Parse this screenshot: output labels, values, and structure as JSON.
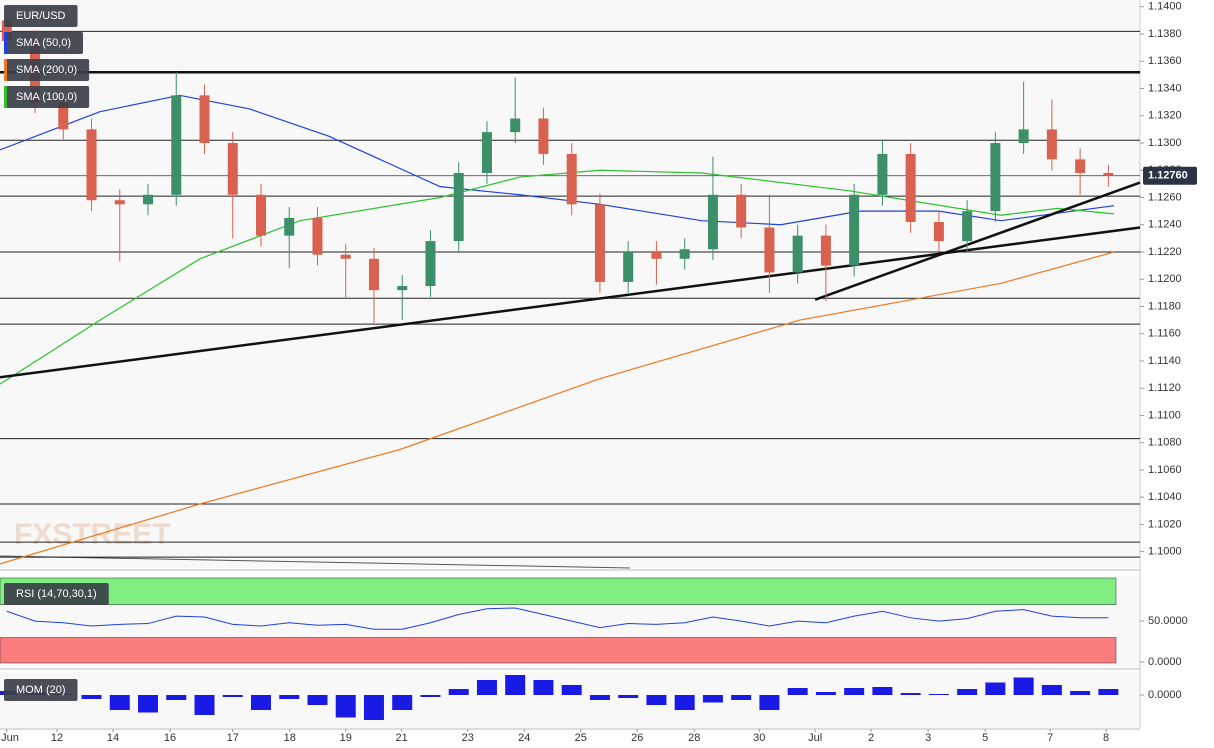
{
  "chart_data": [
    {
      "type": "candlestick",
      "title": "EUR/USD",
      "watermark": "FXSTREET",
      "x": [
        0,
        0.5,
        1,
        1.5,
        2,
        2.5,
        3,
        3.5,
        4,
        4.5,
        5,
        5.5,
        6,
        6.5,
        7,
        7.5,
        8,
        8.5,
        9,
        9.5,
        10,
        10.5,
        11,
        11.5,
        12,
        12.5,
        13,
        13.5,
        14,
        14.5,
        15,
        15.5,
        16,
        16.5,
        17,
        17.5,
        18,
        18.5,
        19,
        19.5
      ],
      "open": [
        1.139,
        1.1375,
        1.133,
        1.131,
        1.1258,
        1.1255,
        1.1262,
        1.1335,
        1.13,
        1.1262,
        1.1232,
        1.1245,
        1.1218,
        1.1215,
        1.1192,
        1.1195,
        1.1228,
        1.1278,
        1.1308,
        1.1318,
        1.1292,
        1.1255,
        1.1198,
        1.122,
        1.1215,
        1.1222,
        1.1262,
        1.1238,
        1.1205,
        1.1232,
        1.121,
        1.1262,
        1.1292,
        1.1242,
        1.1228,
        1.125,
        1.13,
        1.131,
        1.1288,
        1.1278
      ],
      "high": [
        1.1398,
        1.1383,
        1.1338,
        1.1318,
        1.1266,
        1.127,
        1.1352,
        1.1343,
        1.1308,
        1.127,
        1.1253,
        1.1253,
        1.1226,
        1.1223,
        1.1203,
        1.1236,
        1.1286,
        1.1316,
        1.1348,
        1.1326,
        1.13,
        1.1263,
        1.1228,
        1.1228,
        1.123,
        1.129,
        1.127,
        1.1262,
        1.124,
        1.124,
        1.127,
        1.1302,
        1.13,
        1.125,
        1.1258,
        1.1308,
        1.1345,
        1.1332,
        1.1296,
        1.1284
      ],
      "low": [
        1.1367,
        1.1322,
        1.1302,
        1.125,
        1.1213,
        1.1247,
        1.1254,
        1.1292,
        1.123,
        1.1224,
        1.1208,
        1.121,
        1.1186,
        1.1168,
        1.117,
        1.1187,
        1.122,
        1.127,
        1.13,
        1.1284,
        1.1247,
        1.119,
        1.119,
        1.1196,
        1.1207,
        1.1214,
        1.123,
        1.119,
        1.1197,
        1.1184,
        1.1202,
        1.1254,
        1.1234,
        1.122,
        1.122,
        1.1242,
        1.1292,
        1.128,
        1.1262,
        1.1268
      ],
      "close": [
        1.1375,
        1.133,
        1.131,
        1.1258,
        1.1255,
        1.1262,
        1.1335,
        1.13,
        1.1262,
        1.1232,
        1.1245,
        1.1218,
        1.1215,
        1.1192,
        1.1195,
        1.1228,
        1.1278,
        1.1308,
        1.1318,
        1.1292,
        1.1255,
        1.1198,
        1.122,
        1.1215,
        1.1222,
        1.1262,
        1.1238,
        1.1205,
        1.1232,
        1.121,
        1.1262,
        1.1292,
        1.1242,
        1.1228,
        1.125,
        1.13,
        1.131,
        1.1288,
        1.1278,
        1.1276
      ],
      "up_color": "#3d8f6a",
      "down_color": "#d9614f",
      "series": [
        {
          "name": "SMA (50,0)",
          "color": "#2040e0",
          "x": [
            -0.12,
            1.65,
            3.06,
            4.3,
            5.7,
            7.67,
            9.08,
            10.5,
            12.3,
            13.7,
            15.1,
            16.5,
            17.6,
            19.6
          ],
          "values": [
            1.1295,
            1.1323,
            1.1335,
            1.1325,
            1.1305,
            1.1268,
            1.1262,
            1.1255,
            1.1243,
            1.124,
            1.125,
            1.125,
            1.1243,
            1.1254
          ]
        },
        {
          "name": "SMA (200,0)",
          "color": "#f07820",
          "x": [
            -0.12,
            3.42,
            6.96,
            10.5,
            14.04,
            17.6,
            19.6
          ],
          "values": [
            1.0991,
            1.1035,
            1.1075,
            1.1127,
            1.117,
            1.1197,
            1.122
          ]
        },
        {
          "name": "SMA (100,0)",
          "color": "#30c030",
          "x": [
            -0.12,
            1.65,
            3.42,
            5.19,
            7.67,
            9.08,
            10.5,
            12.3,
            14.9,
            17.6,
            18.6,
            19.6
          ],
          "values": [
            1.1123,
            1.117,
            1.1215,
            1.1243,
            1.126,
            1.1275,
            1.128,
            1.1278,
            1.1265,
            1.1247,
            1.1252,
            1.1248
          ]
        }
      ],
      "levels": [
        1.1382,
        1.1302,
        1.1261,
        1.122,
        1.1186,
        1.1167,
        1.1083,
        1.1035,
        1.1007,
        1.0996
      ],
      "bold_level": 1.1352,
      "trendlines": [
        {
          "x": [
            -0.12,
            20.06
          ],
          "values": [
            1.1128,
            1.1238
          ]
        },
        {
          "x": [
            14.31,
            20.06
          ],
          "values": [
            1.1185,
            1.1271
          ]
        }
      ],
      "last_price": 1.1276,
      "last_price_label": "1.12760",
      "xlim": [
        -0.12,
        20.06
      ],
      "ylim": [
        1.0988,
        1.1405
      ],
      "yticks": [
        {
          "value": 1.1,
          "label": "1.1000"
        },
        {
          "value": 1.102,
          "label": "1.1020"
        },
        {
          "value": 1.104,
          "label": "1.1040"
        },
        {
          "value": 1.106,
          "label": "1.1060"
        },
        {
          "value": 1.108,
          "label": "1.1080"
        },
        {
          "value": 1.11,
          "label": "1.1100"
        },
        {
          "value": 1.112,
          "label": "1.1120"
        },
        {
          "value": 1.114,
          "label": "1.1140"
        },
        {
          "value": 1.116,
          "label": "1.1160"
        },
        {
          "value": 1.118,
          "label": "1.1180"
        },
        {
          "value": 1.12,
          "label": "1.1200"
        },
        {
          "value": 1.122,
          "label": "1.1220"
        },
        {
          "value": 1.124,
          "label": "1.1240"
        },
        {
          "value": 1.126,
          "label": "1.1260"
        },
        {
          "value": 1.128,
          "label": "1.1280"
        },
        {
          "value": 1.13,
          "label": "1.1300"
        },
        {
          "value": 1.132,
          "label": "1.1320"
        },
        {
          "value": 1.134,
          "label": "1.1340"
        },
        {
          "value": 1.136,
          "label": "1.1360"
        },
        {
          "value": 1.138,
          "label": "1.1380"
        },
        {
          "value": 1.14,
          "label": "1.1400"
        }
      ]
    },
    {
      "type": "line",
      "title": "RSI (14,70,30,1)",
      "color": "#2040e0",
      "overbought": 70,
      "oversold": 30,
      "x": [
        0,
        0.5,
        1,
        1.5,
        2,
        2.5,
        3,
        3.5,
        4,
        4.5,
        5,
        5.5,
        6,
        6.5,
        7,
        7.5,
        8,
        8.5,
        9,
        9.5,
        10,
        10.5,
        11,
        11.5,
        12,
        12.5,
        13,
        13.5,
        14,
        14.5,
        15,
        15.5,
        16,
        16.5,
        17,
        17.5,
        18,
        18.5,
        19,
        19.5
      ],
      "values": [
        62,
        50,
        48,
        44,
        46,
        47,
        56,
        55,
        46,
        44,
        48,
        45,
        46,
        40,
        40,
        48,
        58,
        65,
        66,
        58,
        50,
        42,
        47,
        46,
        48,
        55,
        50,
        44,
        50,
        48,
        56,
        62,
        54,
        50,
        53,
        62,
        64,
        56,
        54,
        54
      ],
      "xlim": [
        -0.12,
        20.06
      ],
      "ylim": [
        -6,
        105
      ],
      "yticks": [
        {
          "value": 0,
          "label": "0.0000"
        },
        {
          "value": 50,
          "label": "50.0000"
        }
      ]
    },
    {
      "type": "bar",
      "title": "MOM (20)",
      "color": "#1a1ae6",
      "x": [
        0,
        0.5,
        1,
        1.5,
        2,
        2.5,
        3,
        3.5,
        4,
        4.5,
        5,
        5.5,
        6,
        6.5,
        7,
        7.5,
        8,
        8.5,
        9,
        9.5,
        10,
        10.5,
        11,
        11.5,
        12,
        12.5,
        13,
        13.5,
        14,
        14.5,
        15,
        15.5,
        16,
        16.5,
        17,
        17.5,
        18,
        18.5,
        19,
        19.5
      ],
      "values": [
        0.0008,
        0.0006,
        0.0002,
        -0.0008,
        -0.003,
        -0.0035,
        -0.001,
        -0.004,
        -0.0004,
        -0.003,
        -0.0008,
        -0.002,
        -0.0045,
        -0.005,
        -0.003,
        -0.0004,
        0.0012,
        0.003,
        0.004,
        0.003,
        0.002,
        -0.001,
        -0.0006,
        -0.002,
        -0.003,
        -0.0015,
        -0.001,
        -0.003,
        0.0014,
        0.0006,
        0.0014,
        0.0016,
        0.0004,
        0.0002,
        0.0012,
        0.0025,
        0.0035,
        0.002,
        0.0008,
        0.0012
      ],
      "xlim": [
        -0.12,
        20.06
      ],
      "ylim": [
        -0.0066,
        0.0046
      ],
      "yticks": [
        {
          "value": 0,
          "label": "0.0000"
        }
      ],
      "xticks": [
        {
          "value": 0,
          "label": "Jun"
        },
        {
          "value": 0.89,
          "label": "12"
        },
        {
          "value": 1.88,
          "label": "14"
        },
        {
          "value": 2.89,
          "label": "16"
        },
        {
          "value": 4.0,
          "label": "17"
        },
        {
          "value": 5.01,
          "label": "18"
        },
        {
          "value": 6.0,
          "label": "19"
        },
        {
          "value": 6.99,
          "label": "21"
        },
        {
          "value": 8.16,
          "label": "23"
        },
        {
          "value": 9.16,
          "label": "24"
        },
        {
          "value": 10.16,
          "label": "25"
        },
        {
          "value": 11.16,
          "label": "26"
        },
        {
          "value": 12.17,
          "label": "28"
        },
        {
          "value": 13.32,
          "label": "30"
        },
        {
          "value": 14.31,
          "label": "Jul"
        },
        {
          "value": 15.3,
          "label": "2"
        },
        {
          "value": 16.31,
          "label": "3"
        },
        {
          "value": 17.32,
          "label": "5"
        },
        {
          "value": 18.47,
          "label": "7"
        },
        {
          "value": 19.46,
          "label": "8"
        }
      ]
    }
  ]
}
